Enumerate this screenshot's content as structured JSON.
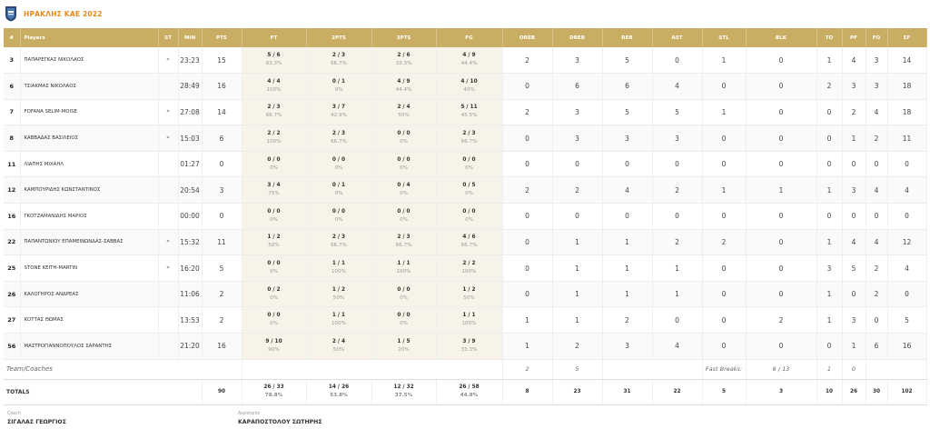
{
  "team": {
    "name": "ΗΡΑΚΛΗΣ ΚΑΕ 2022",
    "logo_icon": "shield-logo-icon",
    "accent_color": "#e88a1a",
    "header_color": "#c9ad62"
  },
  "columns": [
    "#",
    "Players",
    "ST",
    "MIN",
    "PTS",
    "FT",
    "2PTS",
    "3PTS",
    "FG",
    "OREB",
    "DREB",
    "REB",
    "AST",
    "STL",
    "BLK",
    "TO",
    "PF",
    "FO",
    "EF"
  ],
  "players": [
    {
      "num": "3",
      "name": "ΠΑΠΑΡΕΓΚΑΣ ΝΙΚΟΛΑΟΣ",
      "st": "*",
      "min": "23:23",
      "pts": "15",
      "ft": "5 / 6",
      "ft_pct": "83.3%",
      "p2": "2 / 3",
      "p2_pct": "66.7%",
      "p3": "2 / 6",
      "p3_pct": "33.3%",
      "fg": "4 / 9",
      "fg_pct": "44.4%",
      "oreb": "2",
      "dreb": "3",
      "reb": "5",
      "ast": "0",
      "stl": "1",
      "blk": "0",
      "to": "1",
      "pf": "4",
      "fo": "3",
      "ef": "14"
    },
    {
      "num": "6",
      "name": "ΤΣΙΑΚΜΑΣ ΝΙΚΟΛΑΟΣ",
      "st": "",
      "min": "28:49",
      "pts": "16",
      "ft": "4 / 4",
      "ft_pct": "100%",
      "p2": "0 / 1",
      "p2_pct": "0%",
      "p3": "4 / 9",
      "p3_pct": "44.4%",
      "fg": "4 / 10",
      "fg_pct": "40%",
      "oreb": "0",
      "dreb": "6",
      "reb": "6",
      "ast": "4",
      "stl": "0",
      "blk": "0",
      "to": "2",
      "pf": "3",
      "fo": "3",
      "ef": "18"
    },
    {
      "num": "7",
      "name": "FOFANA SELIM-MOISE",
      "st": "*",
      "min": "27:08",
      "pts": "14",
      "ft": "2 / 3",
      "ft_pct": "66.7%",
      "p2": "3 / 7",
      "p2_pct": "42.9%",
      "p3": "2 / 4",
      "p3_pct": "50%",
      "fg": "5 / 11",
      "fg_pct": "45.5%",
      "oreb": "2",
      "dreb": "3",
      "reb": "5",
      "ast": "5",
      "stl": "1",
      "blk": "0",
      "to": "0",
      "pf": "2",
      "fo": "4",
      "ef": "18"
    },
    {
      "num": "8",
      "name": "ΚΑΒΒΑΔΑΣ ΒΑΣΙΛΕΙΟΣ",
      "st": "*",
      "min": "15:03",
      "pts": "6",
      "ft": "2 / 2",
      "ft_pct": "100%",
      "p2": "2 / 3",
      "p2_pct": "66.7%",
      "p3": "0 / 0",
      "p3_pct": "0%",
      "fg": "2 / 3",
      "fg_pct": "66.7%",
      "oreb": "0",
      "dreb": "3",
      "reb": "3",
      "ast": "3",
      "stl": "0",
      "blk": "0",
      "to": "0",
      "pf": "1",
      "fo": "2",
      "ef": "11"
    },
    {
      "num": "11",
      "name": "ΛΙΑΠΗΣ ΜΙΧΑΗΛ",
      "st": "",
      "min": "01:27",
      "pts": "0",
      "ft": "0 / 0",
      "ft_pct": "0%",
      "p2": "0 / 0",
      "p2_pct": "0%",
      "p3": "0 / 0",
      "p3_pct": "0%",
      "fg": "0 / 0",
      "fg_pct": "0%",
      "oreb": "0",
      "dreb": "0",
      "reb": "0",
      "ast": "0",
      "stl": "0",
      "blk": "0",
      "to": "0",
      "pf": "0",
      "fo": "0",
      "ef": "0"
    },
    {
      "num": "12",
      "name": "ΚΑΜΠΟΥΡΙΔΗΣ ΚΩΝΣΤΑΝΤΙΝΟΣ",
      "st": "",
      "min": "20:54",
      "pts": "3",
      "ft": "3 / 4",
      "ft_pct": "75%",
      "p2": "0 / 1",
      "p2_pct": "0%",
      "p3": "0 / 4",
      "p3_pct": "0%",
      "fg": "0 / 5",
      "fg_pct": "0%",
      "oreb": "2",
      "dreb": "2",
      "reb": "4",
      "ast": "2",
      "stl": "1",
      "blk": "1",
      "to": "1",
      "pf": "3",
      "fo": "4",
      "ef": "4"
    },
    {
      "num": "16",
      "name": "ΓΚΟΤΖΑΜΑΝΙΔΗΣ ΜΑΡΙΟΣ",
      "st": "",
      "min": "00:00",
      "pts": "0",
      "ft": "0 / 0",
      "ft_pct": "0%",
      "p2": "0 / 0",
      "p2_pct": "0%",
      "p3": "0 / 0",
      "p3_pct": "0%",
      "fg": "0 / 0",
      "fg_pct": "0%",
      "oreb": "0",
      "dreb": "0",
      "reb": "0",
      "ast": "0",
      "stl": "0",
      "blk": "0",
      "to": "0",
      "pf": "0",
      "fo": "0",
      "ef": "0"
    },
    {
      "num": "22",
      "name": "ΠΑΠΑΝΤΩΝΙΟΥ ΕΠΑΜΕΙΝΩΝΔΑΣ-ΣΑΒΒΑΣ",
      "st": "*",
      "min": "15:32",
      "pts": "11",
      "ft": "1 / 2",
      "ft_pct": "50%",
      "p2": "2 / 3",
      "p2_pct": "66.7%",
      "p3": "2 / 3",
      "p3_pct": "66.7%",
      "fg": "4 / 6",
      "fg_pct": "66.7%",
      "oreb": "0",
      "dreb": "1",
      "reb": "1",
      "ast": "2",
      "stl": "2",
      "blk": "0",
      "to": "1",
      "pf": "4",
      "fo": "4",
      "ef": "12"
    },
    {
      "num": "25",
      "name": "STONE KEITH-MARTIN",
      "st": "*",
      "min": "16:20",
      "pts": "5",
      "ft": "0 / 0",
      "ft_pct": "0%",
      "p2": "1 / 1",
      "p2_pct": "100%",
      "p3": "1 / 1",
      "p3_pct": "100%",
      "fg": "2 / 2",
      "fg_pct": "100%",
      "oreb": "0",
      "dreb": "1",
      "reb": "1",
      "ast": "1",
      "stl": "0",
      "blk": "0",
      "to": "3",
      "pf": "5",
      "fo": "2",
      "ef": "4"
    },
    {
      "num": "26",
      "name": "ΚΑΛΟΓΗΡΟΣ ΑΝΔΡΕΑΣ",
      "st": "",
      "min": "11:06",
      "pts": "2",
      "ft": "0 / 2",
      "ft_pct": "0%",
      "p2": "1 / 2",
      "p2_pct": "50%",
      "p3": "0 / 0",
      "p3_pct": "0%",
      "fg": "1 / 2",
      "fg_pct": "50%",
      "oreb": "0",
      "dreb": "1",
      "reb": "1",
      "ast": "1",
      "stl": "0",
      "blk": "0",
      "to": "1",
      "pf": "0",
      "fo": "2",
      "ef": "0"
    },
    {
      "num": "27",
      "name": "ΚΟΤΤΑΣ ΘΩΜΑΣ",
      "st": "",
      "min": "13:53",
      "pts": "2",
      "ft": "0 / 0",
      "ft_pct": "0%",
      "p2": "1 / 1",
      "p2_pct": "100%",
      "p3": "0 / 0",
      "p3_pct": "0%",
      "fg": "1 / 1",
      "fg_pct": "100%",
      "oreb": "1",
      "dreb": "1",
      "reb": "2",
      "ast": "0",
      "stl": "0",
      "blk": "2",
      "to": "1",
      "pf": "3",
      "fo": "0",
      "ef": "5"
    },
    {
      "num": "56",
      "name": "ΜΑΣΤΡΟΓΙΑΝΝΟΠΟΥΛΟΣ ΣΑΡΑΝΤΗΣ",
      "st": "",
      "min": "21:20",
      "pts": "16",
      "ft": "9 / 10",
      "ft_pct": "90%",
      "p2": "2 / 4",
      "p2_pct": "50%",
      "p3": "1 / 5",
      "p3_pct": "20%",
      "fg": "3 / 9",
      "fg_pct": "33.3%",
      "oreb": "1",
      "dreb": "2",
      "reb": "3",
      "ast": "4",
      "stl": "0",
      "blk": "0",
      "to": "0",
      "pf": "1",
      "fo": "6",
      "ef": "16"
    }
  ],
  "team_row": {
    "label": "Team/Coaches",
    "oreb": "2",
    "dreb": "5",
    "fast_breaks_label": "Fast Breaks:",
    "fast_breaks_value": "6 / 13",
    "to": "1",
    "pf": "0"
  },
  "totals": {
    "label": "TOTALS",
    "min": "",
    "pts": "90",
    "ft": "26 / 33",
    "ft_pct": "78.8%",
    "p2": "14 / 26",
    "p2_pct": "53.8%",
    "p3": "12 / 32",
    "p3_pct": "37.5%",
    "fg": "26 / 58",
    "fg_pct": "44.8%",
    "oreb": "8",
    "dreb": "23",
    "reb": "31",
    "ast": "22",
    "stl": "5",
    "blk": "3",
    "to": "10",
    "pf": "26",
    "fo": "30",
    "ef": "102"
  },
  "staff": {
    "coach_role": "Coach",
    "coach_name": "ΣΙΓΑΛΑΣ ΓΕΩΡΓΙΟΣ",
    "assistants_role": "Assistants",
    "assistants_name": "ΚΑΡΑΠΟΣΤΟΛΟΥ ΣΩΤΗΡΗΣ"
  }
}
